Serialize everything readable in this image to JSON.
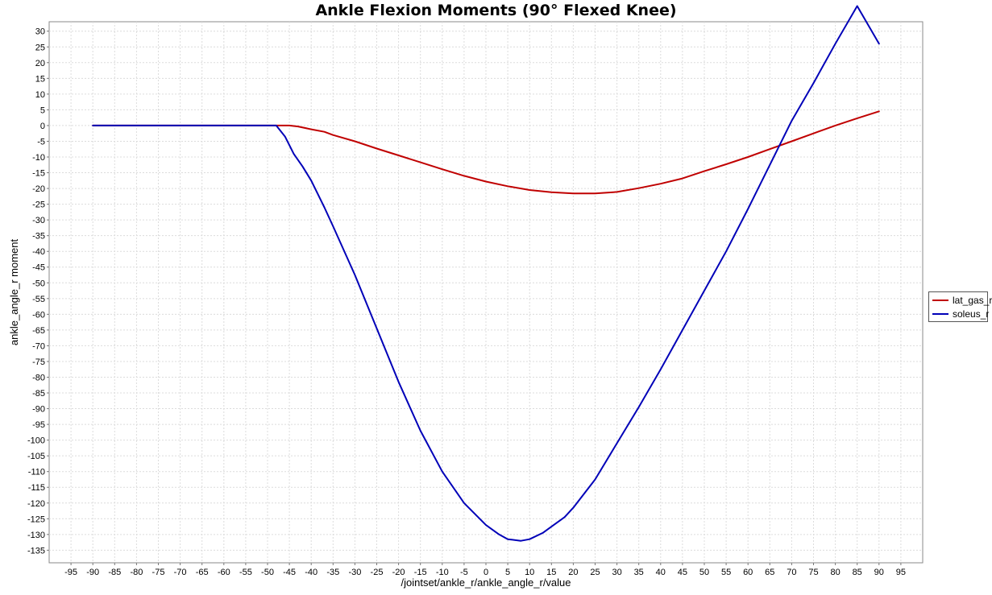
{
  "chart_data": {
    "type": "line",
    "title": "Ankle Flexion Moments (90° Flexed Knee)",
    "xlabel": "/jointset/ankle_r/ankle_angle_r/value",
    "ylabel": "ankle_angle_r moment",
    "xlim": [
      -100,
      100
    ],
    "ylim": [
      -139,
      33
    ],
    "xticks": [
      -95,
      -90,
      -85,
      -80,
      -75,
      -70,
      -65,
      -60,
      -55,
      -50,
      -45,
      -40,
      -35,
      -30,
      -25,
      -20,
      -15,
      -10,
      -5,
      0,
      5,
      10,
      15,
      20,
      25,
      30,
      35,
      40,
      45,
      50,
      55,
      60,
      65,
      70,
      75,
      80,
      85,
      90,
      95
    ],
    "yticks": [
      30,
      25,
      20,
      15,
      10,
      5,
      0,
      -5,
      -10,
      -15,
      -20,
      -25,
      -30,
      -35,
      -40,
      -45,
      -50,
      -55,
      -60,
      -65,
      -70,
      -75,
      -80,
      -85,
      -90,
      -95,
      -100,
      -105,
      -110,
      -115,
      -120,
      -125,
      -130,
      -135
    ],
    "grid": true,
    "legend_position": "right",
    "series": [
      {
        "name": "lat_gas_r",
        "color": "#c00000",
        "x": [
          -90,
          -80,
          -70,
          -60,
          -50,
          -45,
          -43,
          -40,
          -37,
          -35,
          -30,
          -25,
          -20,
          -15,
          -10,
          -5,
          0,
          5,
          10,
          15,
          20,
          25,
          30,
          35,
          40,
          45,
          50,
          55,
          60,
          65,
          70,
          75,
          80,
          85,
          90
        ],
        "y": [
          0,
          0,
          0,
          0,
          0,
          0,
          -0.3,
          -1.2,
          -2,
          -3,
          -5,
          -7.3,
          -9.5,
          -11.7,
          -13.9,
          -16,
          -17.8,
          -19.3,
          -20.5,
          -21.2,
          -21.6,
          -21.6,
          -21.1,
          -19.9,
          -18.5,
          -16.8,
          -14.5,
          -12.3,
          -10,
          -7.5,
          -5,
          -2.5,
          0,
          2.3,
          4.5
        ]
      },
      {
        "name": "soleus_r",
        "color": "#0000b8",
        "x": [
          -90,
          -80,
          -70,
          -60,
          -50,
          -48,
          -46,
          -44,
          -42,
          -40,
          -37,
          -35,
          -30,
          -25,
          -20,
          -15,
          -10,
          -5,
          0,
          3,
          5,
          8,
          10,
          13,
          15,
          18,
          20,
          25,
          30,
          35,
          40,
          45,
          50,
          55,
          60,
          65,
          70,
          75,
          80,
          85,
          90
        ],
        "y": [
          0,
          0,
          0,
          0,
          0,
          0,
          -3.5,
          -9,
          -13,
          -17.5,
          -26,
          -32,
          -47.5,
          -64.5,
          -81.5,
          -97,
          -110,
          -120,
          -127,
          -130,
          -131.5,
          -132,
          -131.5,
          -129.5,
          -127.5,
          -124.5,
          -121.5,
          -112.5,
          -101,
          -89.5,
          -77.5,
          -65,
          -52.5,
          -40,
          -26.5,
          -12.5,
          1.5,
          13.5,
          26,
          38,
          26
        ]
      }
    ]
  }
}
